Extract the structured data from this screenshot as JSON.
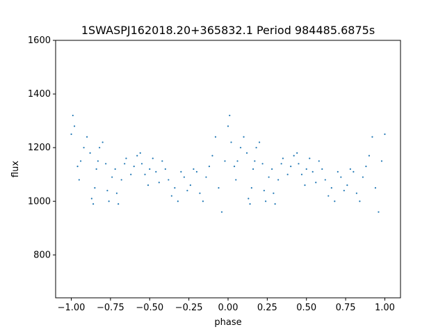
{
  "chart_data": {
    "type": "scatter",
    "title": "1SWASPJ162018.20+365832.1 Period 984485.6875s",
    "xlabel": "phase",
    "ylabel": "flux",
    "xlim": [
      -1.1,
      1.1
    ],
    "ylim": [
      640,
      1600
    ],
    "x_ticks": [
      -1.0,
      -0.75,
      -0.5,
      -0.25,
      0.0,
      0.25,
      0.5,
      0.75,
      1.0
    ],
    "x_tick_labels": [
      "−1.00",
      "−0.75",
      "−0.50",
      "−0.25",
      "0.00",
      "0.25",
      "0.50",
      "0.75",
      "1.00"
    ],
    "y_ticks": [
      800,
      1000,
      1200,
      1400,
      1600
    ],
    "y_tick_labels": [
      "800",
      "1000",
      "1200",
      "1400",
      "1600"
    ],
    "grid": false,
    "legend": "none",
    "marker_color": "#1f77b4",
    "series": [
      {
        "x": [
          -1.0,
          -0.99,
          -0.98,
          -0.96,
          -0.95,
          -0.94,
          -0.92,
          -0.9,
          -0.88,
          -0.87,
          -0.86,
          -0.85,
          -0.84,
          -0.83,
          -0.82,
          -0.8,
          -0.78,
          -0.77,
          -0.76,
          -0.74,
          -0.72,
          -0.71,
          -0.7,
          -0.68,
          -0.66,
          -0.65,
          -0.62,
          -0.6,
          -0.58,
          -0.56,
          -0.55,
          -0.53,
          -0.51,
          -0.5,
          -0.48,
          -0.46,
          -0.44,
          -0.42,
          -0.4,
          -0.38,
          -0.36,
          -0.34,
          -0.32,
          -0.3,
          -0.28,
          -0.26,
          -0.24,
          -0.22,
          -0.2,
          -0.18,
          -0.16,
          -0.14,
          -0.12,
          -0.1,
          -0.08,
          -0.06,
          -0.04,
          -0.02,
          0.0,
          0.01,
          0.02,
          0.04,
          0.05,
          0.06,
          0.08,
          0.1,
          0.12,
          0.13,
          0.14,
          0.15,
          0.16,
          0.17,
          0.18,
          0.2,
          0.22,
          0.23,
          0.24,
          0.26,
          0.28,
          0.29,
          0.3,
          0.32,
          0.34,
          0.35,
          0.38,
          0.4,
          0.42,
          0.44,
          0.45,
          0.47,
          0.49,
          0.5,
          0.52,
          0.54,
          0.56,
          0.58,
          0.6,
          0.62,
          0.64,
          0.66,
          0.68,
          0.7,
          0.72,
          0.74,
          0.76,
          0.78,
          0.8,
          0.82,
          0.84,
          0.86,
          0.88,
          0.9,
          0.92,
          0.94,
          0.96,
          0.98,
          1.0
        ],
        "y": [
          1250,
          1320,
          1280,
          1130,
          1080,
          1150,
          1200,
          1240,
          1180,
          1010,
          990,
          1050,
          1120,
          1150,
          1200,
          1220,
          1140,
          1040,
          1000,
          1090,
          1120,
          1030,
          990,
          1080,
          1140,
          1160,
          1100,
          1130,
          1170,
          1180,
          1140,
          1100,
          1060,
          1120,
          1160,
          1110,
          1070,
          1150,
          1120,
          1080,
          1020,
          1050,
          1000,
          1110,
          1090,
          1040,
          1060,
          1120,
          1110,
          1030,
          1000,
          1090,
          1130,
          1170,
          1240,
          1050,
          960,
          1150,
          1280,
          1320,
          1220,
          1130,
          1080,
          1150,
          1200,
          1240,
          1180,
          1010,
          990,
          1050,
          1120,
          1150,
          1200,
          1220,
          1140,
          1040,
          1000,
          1090,
          1120,
          1030,
          990,
          1080,
          1140,
          1160,
          1100,
          1130,
          1170,
          1180,
          1140,
          1100,
          1060,
          1120,
          1160,
          1110,
          1070,
          1150,
          1120,
          1080,
          1020,
          1050,
          1000,
          1110,
          1090,
          1040,
          1060,
          1120,
          1110,
          1030,
          1000,
          1090,
          1130,
          1170,
          1240,
          1050,
          960,
          1150,
          1250
        ]
      }
    ]
  }
}
